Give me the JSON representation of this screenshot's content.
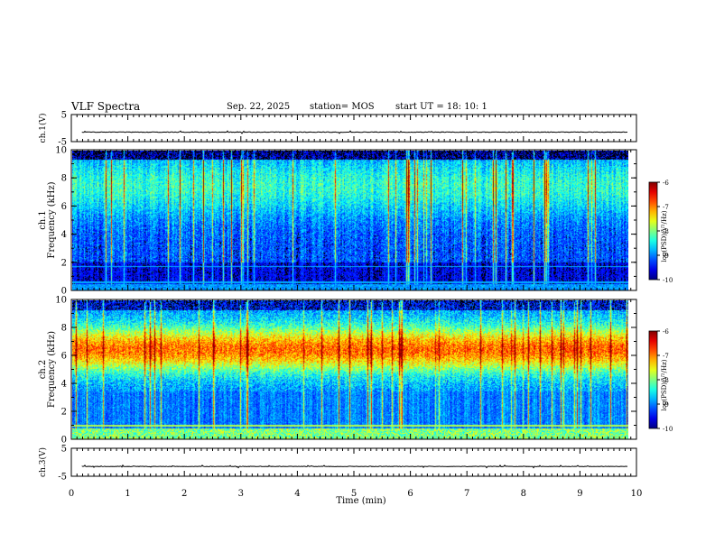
{
  "header": {
    "title": "VLF Spectra",
    "date": "Sep. 22, 2025",
    "station": "station= MOS",
    "start": "start  UT  =   18: 10: 1"
  },
  "chart_data": [
    {
      "type": "line",
      "name": "ch1-waveform",
      "ylabel": "ch.1(V)",
      "ylim": [
        -5,
        5
      ],
      "yticks": [
        "5",
        "-5"
      ],
      "baseline": -1.5
    },
    {
      "type": "heatmap",
      "name": "ch1-spectrogram",
      "ylabel_channel": "ch.1",
      "ylabel": "Frequency (kHz)",
      "ylim": [
        0,
        10
      ],
      "yticks": [
        "0",
        "2",
        "4",
        "6",
        "8",
        "10"
      ],
      "colorbar": {
        "label": "log(PSD)(V²/Hz)",
        "range": [
          -10,
          -6
        ],
        "ticks": [
          "-6",
          "-7",
          "-8",
          "-9",
          "-10"
        ]
      }
    },
    {
      "type": "heatmap",
      "name": "ch2-spectrogram",
      "ylabel_channel": "ch.2",
      "ylabel": "Frequency (kHz)",
      "ylim": [
        0,
        10
      ],
      "yticks": [
        "0",
        "2",
        "4",
        "6",
        "8",
        "10"
      ],
      "colorbar": {
        "label": "log(PSD)(V²/Hz)",
        "range": [
          -10,
          -6
        ],
        "ticks": [
          "-6",
          "-7",
          "-8",
          "-9",
          "-10"
        ]
      }
    },
    {
      "type": "line",
      "name": "ch3-waveform",
      "ylabel": "ch.3(V)",
      "ylim": [
        -5,
        5
      ],
      "yticks": [
        "5",
        "-5"
      ],
      "baseline": -1.5
    }
  ],
  "xaxis": {
    "label": "Time  (min)",
    "range": [
      0,
      10
    ],
    "ticks": [
      "0",
      "1",
      "2",
      "3",
      "4",
      "5",
      "6",
      "7",
      "8",
      "9",
      "10"
    ],
    "data_end": 9.85
  }
}
